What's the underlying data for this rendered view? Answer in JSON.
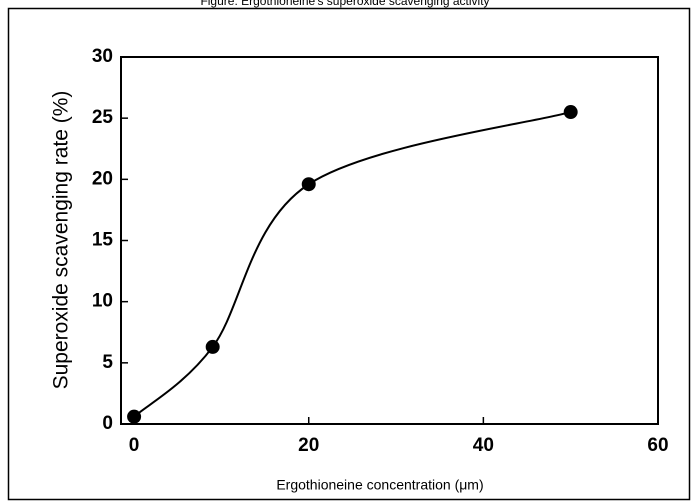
{
  "chart_data": {
    "type": "line",
    "title": "Figure: Ergothioneine's superoxide scavenging activity",
    "x_label": "Ergothioneine concentration (μm)",
    "y_label": "Superoxide scavenging rate (%)",
    "x": [
      0,
      9,
      20,
      50
    ],
    "series": [
      {
        "name": "Superoxide scavenging rate",
        "color": "#000000",
        "values": [
          0.6,
          6.3,
          19.6,
          25.5
        ]
      }
    ],
    "xlim": [
      -1.5,
      60
    ],
    "xticks": [
      0,
      20,
      40,
      60
    ],
    "ylim": [
      0,
      30
    ],
    "yticks": [
      0,
      5,
      10,
      15,
      20,
      25,
      30
    ],
    "grid": false
  }
}
